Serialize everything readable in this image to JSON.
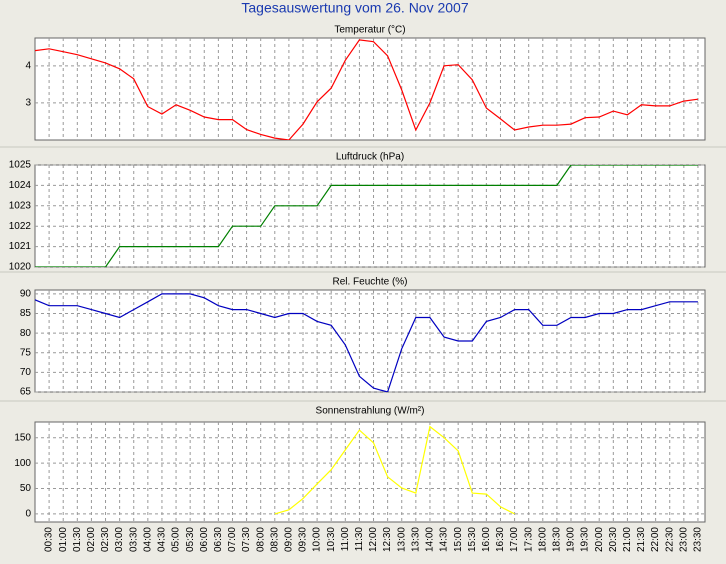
{
  "title": "Tagesauswertung vom 26. Nov 2007",
  "chart_data": [
    {
      "type": "line",
      "title": "Temperatur (°C)",
      "color": "#ff0000",
      "grid": true,
      "ylim": [
        2.0,
        4.75
      ],
      "yticks": [
        3,
        4
      ],
      "values": [
        4.41,
        4.46,
        4.38,
        4.3,
        4.19,
        4.08,
        3.92,
        3.65,
        2.9,
        2.7,
        2.95,
        2.8,
        2.62,
        2.55,
        2.55,
        2.28,
        2.15,
        2.05,
        2.0,
        2.43,
        3.03,
        3.4,
        4.15,
        4.7,
        4.65,
        4.27,
        3.35,
        2.27,
        3.0,
        4.0,
        4.03,
        3.62,
        2.86,
        2.57,
        2.27,
        2.35,
        2.4,
        2.4,
        2.43,
        2.6,
        2.62,
        2.78,
        2.68,
        2.95,
        2.92,
        2.92,
        3.05,
        3.1
      ]
    },
    {
      "type": "line",
      "title": "Luftdruck (hPa)",
      "color": "#008000",
      "grid": true,
      "ylim": [
        1020,
        1025
      ],
      "yticks": [
        1020,
        1021,
        1022,
        1023,
        1024,
        1025
      ],
      "values": [
        1020,
        1020,
        1020,
        1020,
        1020,
        1020,
        1021,
        1021,
        1021,
        1021,
        1021,
        1021,
        1021,
        1021,
        1022,
        1022,
        1022,
        1023,
        1023,
        1023,
        1023,
        1024,
        1024,
        1024,
        1024,
        1024,
        1024,
        1024,
        1024,
        1024,
        1024,
        1024,
        1024,
        1024,
        1024,
        1024,
        1024,
        1024,
        1025,
        1025,
        1025,
        1025,
        1025,
        1025,
        1025,
        1025,
        1025,
        1025
      ]
    },
    {
      "type": "line",
      "title": "Rel. Feuchte (%)",
      "color": "#0000c0",
      "grid": true,
      "ylim": [
        65,
        91
      ],
      "yticks": [
        65,
        70,
        75,
        80,
        85,
        90
      ],
      "values": [
        88.5,
        87,
        87,
        87,
        86,
        85,
        84,
        86,
        88,
        90,
        90,
        90,
        89,
        87,
        86,
        86,
        85,
        84,
        85,
        85,
        83,
        82,
        77,
        69,
        66,
        65,
        76,
        84,
        84,
        79,
        78,
        78,
        83,
        84,
        86,
        86,
        82,
        82,
        84,
        84,
        85,
        85,
        86,
        86,
        87,
        88,
        88,
        88
      ]
    },
    {
      "type": "line",
      "title": "Sonnenstrahlung (W/m²)",
      "color": "#ffff00",
      "grid": true,
      "ylim": [
        -16,
        181
      ],
      "yticks": [
        0,
        50,
        100,
        150
      ],
      "categories": [
        null,
        "00:30",
        "01:00",
        "01:30",
        "02:00",
        "02:30",
        "03:00",
        "03:30",
        "04:00",
        "04:30",
        "05:00",
        "05:30",
        "06:00",
        "06:30",
        "07:00",
        "07:30",
        "08:00",
        "08:30",
        "09:00",
        "09:30",
        "10:00",
        "10:30",
        "11:00",
        "11:30",
        "12:00",
        "12:30",
        "13:00",
        "13:30",
        "14:00",
        "14:30",
        "15:00",
        "15:30",
        "16:00",
        "16:30",
        "17:00",
        "17:30",
        "18:00",
        "18:30",
        "19:00",
        "19:30",
        "20:00",
        "20:30",
        "21:00",
        "21:30",
        "22:00",
        "22:30",
        "23:00",
        "23:30"
      ],
      "values": [
        null,
        null,
        null,
        null,
        null,
        null,
        null,
        null,
        null,
        null,
        null,
        null,
        null,
        null,
        null,
        null,
        null,
        0,
        8,
        30,
        59,
        87,
        126,
        165,
        140,
        73,
        51,
        41,
        172,
        150,
        124,
        41,
        39,
        14,
        0,
        null,
        null,
        null,
        null,
        null,
        null,
        null,
        null,
        null,
        null,
        null,
        null,
        null
      ]
    }
  ]
}
